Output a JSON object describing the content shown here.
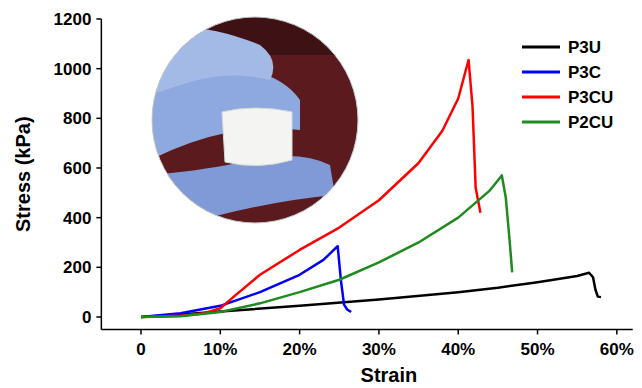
{
  "chart_data": {
    "type": "line",
    "x_label": "Strain",
    "y_label": "Stress (kPa)",
    "xlim": [
      -5,
      62
    ],
    "ylim": [
      -50,
      1200
    ],
    "xticks": [
      {
        "value": 0,
        "label": "0"
      },
      {
        "value": 10,
        "label": "10%"
      },
      {
        "value": 20,
        "label": "20%"
      },
      {
        "value": 30,
        "label": "30%"
      },
      {
        "value": 40,
        "label": "40%"
      },
      {
        "value": 50,
        "label": "50%"
      },
      {
        "value": 60,
        "label": "60%"
      }
    ],
    "yticks": [
      0,
      200,
      400,
      600,
      800,
      1000,
      1200
    ],
    "grid": false,
    "legend": "top-right",
    "series": [
      {
        "name": "P3U",
        "color": "#000000",
        "x": [
          0,
          5,
          10,
          20,
          30,
          40,
          45,
          50,
          55,
          56.5,
          57,
          57.3,
          57.6,
          58
        ],
        "values": [
          0,
          10,
          22,
          45,
          70,
          100,
          118,
          140,
          165,
          178,
          160,
          110,
          82,
          80
        ]
      },
      {
        "name": "P3C",
        "color": "#0000ff",
        "x": [
          0,
          5,
          10,
          15,
          20,
          23,
          24.8,
          25.2,
          25.6,
          26,
          26.5
        ],
        "values": [
          0,
          15,
          45,
          100,
          170,
          230,
          285,
          150,
          50,
          30,
          20
        ]
      },
      {
        "name": "P3CU",
        "color": "#ff0000",
        "x": [
          0,
          5,
          8,
          10,
          12,
          15,
          20,
          25,
          30,
          35,
          38,
          40,
          41.3,
          41.8,
          42.2,
          42.8
        ],
        "values": [
          0,
          5,
          15,
          35,
          90,
          170,
          270,
          360,
          470,
          620,
          750,
          880,
          1035,
          850,
          520,
          420
        ]
      },
      {
        "name": "P2CU",
        "color": "#1f8a1f",
        "x": [
          0,
          5,
          10,
          15,
          20,
          25,
          30,
          35,
          40,
          44,
          45.5,
          46,
          46.5,
          46.8
        ],
        "values": [
          0,
          3,
          20,
          55,
          100,
          150,
          220,
          300,
          400,
          510,
          570,
          480,
          300,
          180
        ]
      }
    ]
  }
}
